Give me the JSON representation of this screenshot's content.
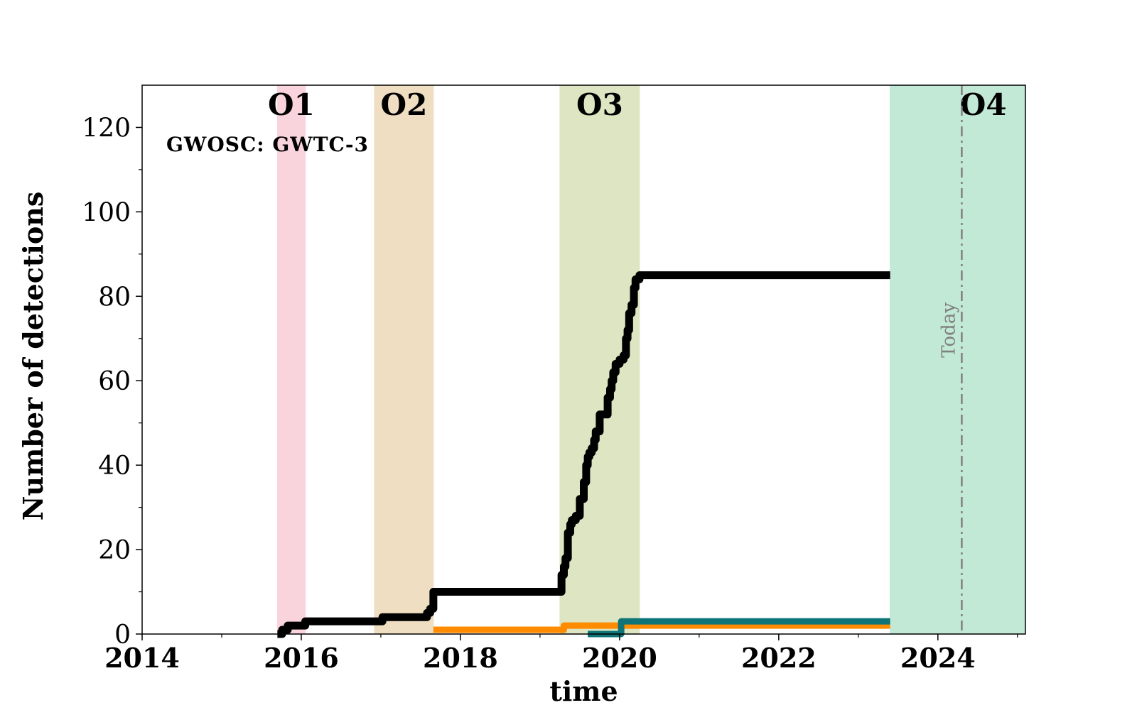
{
  "chart_data": {
    "type": "line",
    "title": "",
    "xlabel": "time",
    "ylabel": "Number of detections",
    "xlim": [
      2014,
      2025.1
    ],
    "ylim": [
      0,
      130
    ],
    "x_ticks": [
      2014,
      2016,
      2018,
      2020,
      2022,
      2024
    ],
    "x_tick_labels": [
      "2014",
      "2016",
      "2018",
      "2020",
      "2022",
      "2024"
    ],
    "y_ticks": [
      0,
      20,
      40,
      60,
      80,
      100,
      120
    ],
    "y_tick_labels": [
      "0",
      "20",
      "40",
      "60",
      "80",
      "100",
      "120"
    ],
    "annotation": "GWOSC: GWTC-3",
    "today": {
      "x": 2024.3,
      "label": "Today",
      "color": "#808080"
    },
    "runs": [
      {
        "label": "O1",
        "start": 2015.7,
        "end": 2016.05,
        "color": "#fad4dc"
      },
      {
        "label": "O2",
        "start": 2016.92,
        "end": 2017.66,
        "color": "#efdec2"
      },
      {
        "label": "O3",
        "start": 2019.25,
        "end": 2020.25,
        "color": "#dde5c2"
      },
      {
        "label": "O4",
        "start": 2023.4,
        "end": 2025.1,
        "color": "#c2e8d6"
      }
    ],
    "series": [
      {
        "color": "#000000",
        "step": true,
        "x": [
          2015.7,
          2015.76,
          2015.83,
          2016.0,
          2016.05,
          2016.95,
          2017.02,
          2017.5,
          2017.58,
          2017.62,
          2017.66,
          2019.25,
          2019.27,
          2019.3,
          2019.32,
          2019.35,
          2019.38,
          2019.4,
          2019.45,
          2019.5,
          2019.55,
          2019.58,
          2019.6,
          2019.62,
          2019.65,
          2019.68,
          2019.7,
          2019.75,
          2019.78,
          2019.8,
          2019.85,
          2019.88,
          2019.9,
          2019.92,
          2019.95,
          2020.0,
          2020.05,
          2020.08,
          2020.1,
          2020.12,
          2020.15,
          2020.18,
          2020.2,
          2020.25,
          2023.4
        ],
        "y": [
          0,
          1,
          2,
          2,
          3,
          3,
          4,
          4,
          5,
          6,
          10,
          10,
          14,
          16,
          18,
          24,
          26,
          27,
          28,
          32,
          36,
          40,
          42,
          43,
          44,
          46,
          48,
          52,
          52,
          52,
          56,
          58,
          60,
          62,
          64,
          65,
          66,
          70,
          72,
          76,
          78,
          82,
          84,
          85,
          85
        ]
      },
      {
        "color": "#ff8c00",
        "step": true,
        "x": [
          2017.66,
          2019.3,
          2023.4
        ],
        "y": [
          1,
          2,
          2
        ]
      },
      {
        "color": "#0e7477",
        "step": true,
        "x": [
          2019.6,
          2020.0,
          2020.02,
          2023.4
        ],
        "y": [
          0,
          0,
          3,
          3
        ]
      }
    ]
  }
}
